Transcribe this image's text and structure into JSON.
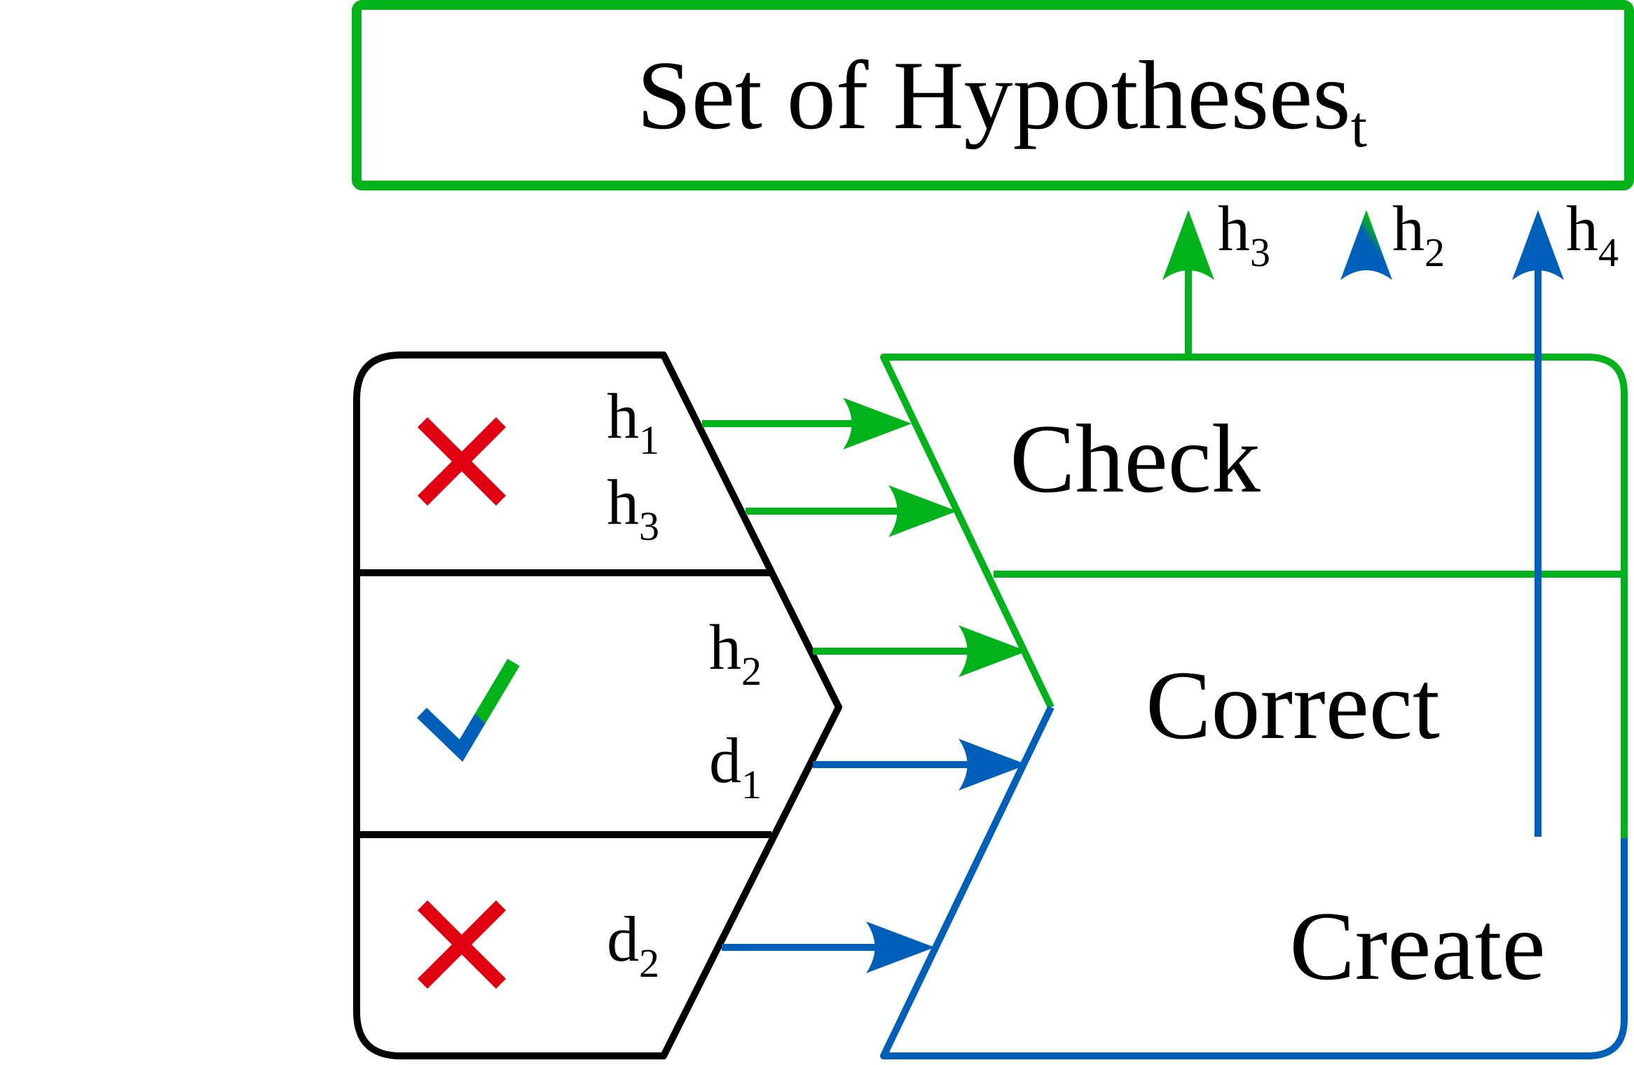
{
  "colors": {
    "green": "#00b31a",
    "blue": "#005fb8",
    "black": "#000000",
    "red": "#e0000f"
  },
  "header": {
    "title": "Set of Hypotheses",
    "subscript": "t"
  },
  "stages": {
    "check": "Check",
    "correct": "Correct",
    "create": "Create"
  },
  "left_rows": [
    {
      "status": "cross-icon",
      "labels": [
        {
          "base": "h",
          "sub": "1"
        },
        {
          "base": "h",
          "sub": "3"
        }
      ]
    },
    {
      "status": "check-mark-icon",
      "labels": [
        {
          "base": "h",
          "sub": "2"
        },
        {
          "base": "d",
          "sub": "1"
        }
      ]
    },
    {
      "status": "cross-icon",
      "labels": [
        {
          "base": "d",
          "sub": "2"
        }
      ]
    }
  ],
  "outputs": [
    {
      "base": "h",
      "sub": "3"
    },
    {
      "base": "h",
      "sub": "2"
    },
    {
      "base": "h",
      "sub": "4"
    }
  ]
}
